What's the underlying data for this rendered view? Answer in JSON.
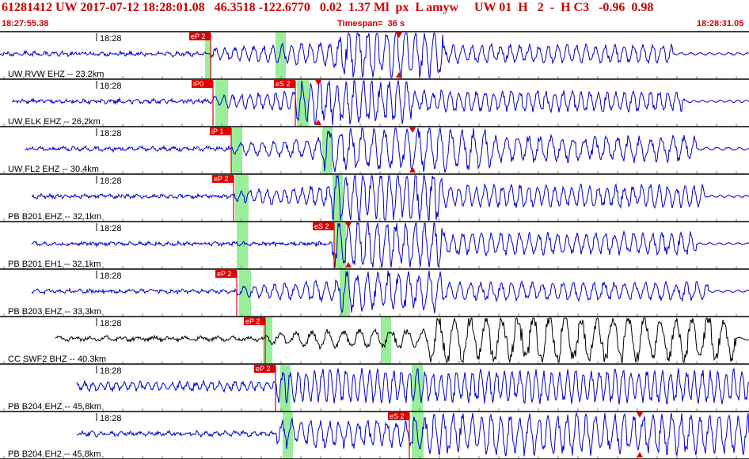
{
  "header": {
    "event_line": "61281412 UW 2017-07-12 18:28:01.08   46.3518 -122.6770   0.02  1.37 Ml  px  L amyw     UW 01  H   2  -  H C3   -0.96  0.98",
    "start_time": "18:27:55.38",
    "timespan": "Timespan=  36 s",
    "end_time": "18:28:31.05"
  },
  "colors": {
    "header_red": "#cc0000",
    "trace_blue": "#0000cc",
    "trace_black": "#000000",
    "pick_red": "#dd0000",
    "window_green": "#99ee99",
    "grid_gray": "#888888"
  },
  "time_tick_label": "18:28",
  "panels": [
    {
      "label": "UW RVW EHZ -- 23.2km",
      "trace_color": "blue",
      "picks": [
        {
          "phase": "P",
          "text": "eP 2"
        }
      ],
      "arrival_markers": [
        {
          "kind": "triangle"
        }
      ]
    },
    {
      "label": "UW ELK EHZ -- 26.2km",
      "trace_color": "blue",
      "picks": [
        {
          "phase": "P",
          "text": "iP0"
        },
        {
          "phase": "S",
          "text": "eS 2"
        }
      ],
      "arrival_markers": [
        {
          "kind": "triangle"
        }
      ]
    },
    {
      "label": "UW FL2 EHZ -- 30.4km",
      "trace_color": "blue",
      "picks": [
        {
          "phase": "P",
          "text": "iP 1"
        }
      ],
      "arrival_markers": [
        {
          "kind": "triangle"
        }
      ]
    },
    {
      "label": "PB B201 EHZ -- 32.1km",
      "trace_color": "blue",
      "picks": [
        {
          "phase": "P",
          "text": "eP 2"
        }
      ],
      "arrival_markers": []
    },
    {
      "label": "PB B201 EH1 -- 32.1km",
      "trace_color": "blue",
      "picks": [
        {
          "phase": "S",
          "text": "eS 2"
        }
      ],
      "arrival_markers": [
        {
          "kind": "triangle"
        }
      ]
    },
    {
      "label": "PB B203 EHZ -- 33.3km",
      "trace_color": "blue",
      "picks": [
        {
          "phase": "P",
          "text": "eP 2"
        }
      ],
      "arrival_markers": []
    },
    {
      "label": "CC SWF2 BHZ -- 40.3km",
      "trace_color": "black",
      "picks": [
        {
          "phase": "P",
          "text": "eP 2"
        }
      ],
      "arrival_markers": []
    },
    {
      "label": "PB B204 EHZ -- 45.8km",
      "trace_color": "blue",
      "picks": [
        {
          "phase": "P",
          "text": "eP 2"
        }
      ],
      "arrival_markers": []
    },
    {
      "label": "PB B204 EH2 -- 45.8km",
      "trace_color": "blue",
      "picks": [
        {
          "phase": "S",
          "text": "eS 2"
        }
      ],
      "arrival_markers": [
        {
          "kind": "triangle"
        }
      ]
    }
  ]
}
